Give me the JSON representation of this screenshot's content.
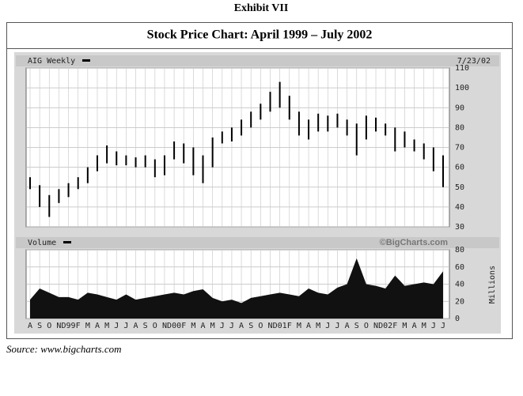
{
  "chart_data": {
    "type": "stock",
    "exhibit": "Exhibit VII",
    "title": "Stock Price Chart: April 1999 – July 2002",
    "series_label": "AIG Weekly",
    "date": "7/23/02",
    "volume_label": "Volume",
    "watermark": "©BigCharts.com",
    "volume_unit": "Millions",
    "source": "Source: www.bigcharts.com",
    "categories": [
      "A",
      "S",
      "O",
      "N",
      "D99",
      "F",
      "M",
      "A",
      "M",
      "J",
      "J",
      "A",
      "S",
      "O",
      "N",
      "D00",
      "F",
      "M",
      "A",
      "M",
      "J",
      "J",
      "A",
      "S",
      "O",
      "N",
      "D01",
      "F",
      "M",
      "A",
      "M",
      "J",
      "J",
      "A",
      "S",
      "O",
      "N",
      "D02",
      "F",
      "M",
      "A",
      "M",
      "J",
      "J"
    ],
    "high": [
      55,
      51,
      46,
      49,
      52,
      55,
      60,
      66,
      71,
      68,
      66,
      65,
      66,
      64,
      66,
      73,
      72,
      70,
      66,
      75,
      78,
      80,
      84,
      88,
      92,
      98,
      103,
      96,
      88,
      84,
      87,
      86,
      87,
      84,
      82,
      86,
      85,
      82,
      80,
      78,
      74,
      72,
      70,
      66
    ],
    "low": [
      49,
      40,
      35,
      42,
      45,
      49,
      52,
      58,
      62,
      61,
      61,
      60,
      60,
      55,
      56,
      64,
      62,
      56,
      52,
      60,
      72,
      73,
      76,
      80,
      84,
      88,
      90,
      84,
      76,
      74,
      78,
      78,
      80,
      76,
      66,
      74,
      78,
      76,
      68,
      70,
      68,
      64,
      58,
      50
    ],
    "volume": [
      22,
      35,
      30,
      25,
      25,
      22,
      30,
      28,
      25,
      22,
      28,
      22,
      24,
      26,
      28,
      30,
      28,
      32,
      34,
      24,
      20,
      22,
      18,
      24,
      26,
      28,
      30,
      28,
      26,
      35,
      30,
      28,
      36,
      40,
      70,
      40,
      38,
      35,
      50,
      38,
      40,
      42,
      40,
      55
    ],
    "color": "#000000",
    "volume_color": "#111111",
    "ylim": [
      30,
      110
    ],
    "yticks": [
      30,
      40,
      50,
      60,
      70,
      80,
      90,
      100,
      110
    ],
    "y2lim": [
      0,
      80
    ],
    "y2ticks": [
      0,
      20,
      40,
      60,
      80
    ],
    "grid": true
  }
}
